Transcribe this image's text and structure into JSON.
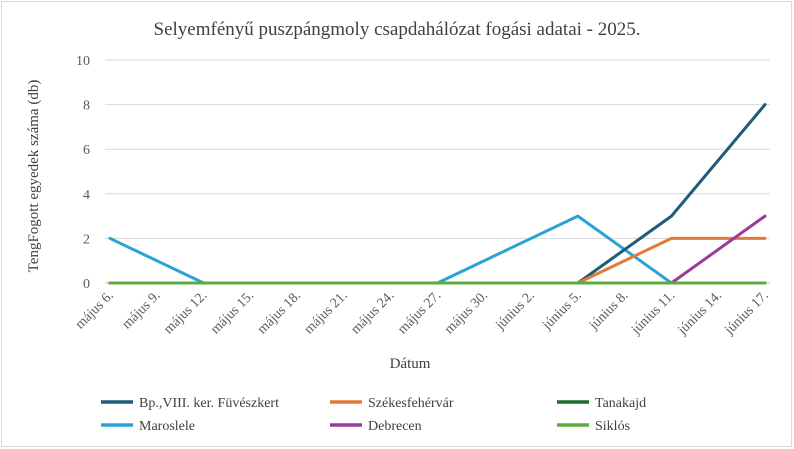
{
  "chart_data": {
    "type": "line",
    "title": "Selyemfényű puszpángmoly csapdahálózat fogási adatai - 2025.",
    "xlabel": "Dátum",
    "ylabel": "TengFogott egyedek száma (db)",
    "ylim": [
      0,
      10
    ],
    "yticks": [
      "0",
      "2",
      "4",
      "6",
      "8",
      "10"
    ],
    "grid": true,
    "legend_position": "bottom",
    "categories": [
      "május 6.",
      "május 9.",
      "május 12.",
      "május 15.",
      "május 18.",
      "május 21.",
      "május 24.",
      "május 27.",
      "május 30.",
      "június 2.",
      "június 5.",
      "június 8.",
      "június 11.",
      "június 14.",
      "június 17."
    ],
    "series": [
      {
        "name": "Bp.,VIII. ker. Füvészkert",
        "color": "#1f5c7a",
        "points": [
          [
            0,
            0
          ],
          [
            10,
            0
          ],
          [
            12,
            3
          ],
          [
            14,
            8
          ]
        ]
      },
      {
        "name": "Székesfehérvár",
        "color": "#e07b39",
        "points": [
          [
            0,
            0
          ],
          [
            10,
            0
          ],
          [
            12,
            2
          ],
          [
            14,
            2
          ]
        ]
      },
      {
        "name": "Tanakajd",
        "color": "#1e6b2e",
        "points": [
          [
            0,
            0
          ],
          [
            14,
            0
          ]
        ]
      },
      {
        "name": "Maroslele",
        "color": "#2aa3d3",
        "points": [
          [
            0,
            2
          ],
          [
            2,
            0
          ],
          [
            7,
            0
          ],
          [
            10,
            3
          ],
          [
            12,
            0
          ],
          [
            14,
            0
          ]
        ]
      },
      {
        "name": "Debrecen",
        "color": "#9b3a9e",
        "points": [
          [
            0,
            0
          ],
          [
            12,
            0
          ],
          [
            14,
            3
          ]
        ]
      },
      {
        "name": "Siklós",
        "color": "#5aad3c",
        "points": [
          [
            0,
            0
          ],
          [
            14,
            0
          ]
        ]
      }
    ]
  }
}
